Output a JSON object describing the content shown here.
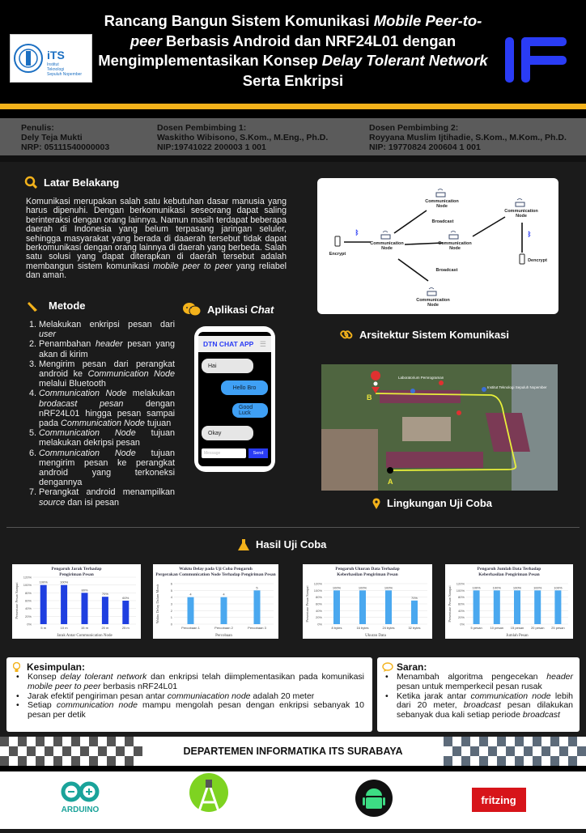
{
  "header": {
    "title_segments": [
      {
        "t": "Rancang Bangun Sistem Komunikasi "
      },
      {
        "t": "Mobile Peer-to-peer",
        "i": true
      },
      {
        "t": " Berbasis Android dan NRF24L01 dengan Mengimplementasikan Konsep "
      },
      {
        "t": "Delay Tolerant Network",
        "i": true
      },
      {
        "t": " Serta Enkripsi"
      }
    ],
    "its_logo": {
      "name": "iTS",
      "sub1": "Institut",
      "sub2": "Teknologi",
      "sub3": "Sepuluh Nopember"
    },
    "if_logo": "IF"
  },
  "authors": [
    {
      "role": "Penulis:",
      "name": "Dely Teja Mukti",
      "id": "NRP: 05111540000003"
    },
    {
      "role": "Dosen Pembimbing 1:",
      "name": "Waskitho Wibisono, S.Kom., M.Eng., Ph.D.",
      "id": "NIP:19741022 200003 1 001"
    },
    {
      "role": "Dosen Pembimbing 2:",
      "name": "Royyana Muslim Ijtihadie, S.Kom., M.Kom., Ph.D.",
      "id": "NIP: 19770824 200604 1 001"
    }
  ],
  "latar": {
    "title": "Latar Belakang",
    "segments": [
      {
        "t": "Komunikasi merupakan salah satu kebutuhan dasar manusia yang harus dipenuhi. Dengan berkomunikasi seseorang dapat saling berinteraksi dengan orang lainnya. Namun masih terdapat beberapa daerah di Indonesia yang belum terpasang jaringan seluler, sehingga masyarakat yang berada di daaerah tersebut tidak dapat berkomunikasi dengan orang lainnya di daerah yang berbeda. Salah satu solusi yang dapat diterapkan di daerah tersebut  adalah membangun sistem komunikasi "
      },
      {
        "t": "mobile peer to peer",
        "i": true
      },
      {
        "t": " yang reliabel dan aman."
      }
    ]
  },
  "metode": {
    "title": "Metode",
    "items": [
      [
        {
          "t": "Melakukan enkripsi pesan dari "
        },
        {
          "t": "user",
          "i": true
        }
      ],
      [
        {
          "t": "Penambahan "
        },
        {
          "t": "header",
          "i": true
        },
        {
          "t": " pesan yang akan di kirim"
        }
      ],
      [
        {
          "t": "Mengirim  pesan  dari perangkat android ke "
        },
        {
          "t": "Communication Node",
          "i": true
        },
        {
          "t": " melalui Bluetooth"
        }
      ],
      [
        {
          "t": "Communication  Node",
          "i": true
        },
        {
          "t": " melakukan "
        },
        {
          "t": "brodacast pesan",
          "i": true
        },
        {
          "t": " dengan nRF24L01 hingga pesan sampai pada "
        },
        {
          "t": "Communication  Node",
          "i": true
        },
        {
          "t": " tujuan"
        }
      ],
      [
        {
          "t": "Communication Node",
          "i": true
        },
        {
          "t": " tujuan melakukan dekripsi pesan"
        }
      ],
      [
        {
          "t": "Communication Node",
          "i": true
        },
        {
          "t": " tujuan mengirim pesan ke perangkat android yang terkoneksi dengannya"
        }
      ],
      [
        {
          "t": "Perangkat android menampilkan "
        },
        {
          "t": "source",
          "i": true
        },
        {
          "t": " dan isi pesan"
        }
      ]
    ]
  },
  "chat": {
    "title_plain": "Aplikasi ",
    "title_italic": "Chat",
    "app_title": "DTN CHAT APP",
    "messages": [
      {
        "text": "Hai",
        "side": "left"
      },
      {
        "text": "Hello Bro",
        "side": "right"
      },
      {
        "text": "Good Luck",
        "side": "right"
      },
      {
        "text": "Okay",
        "side": "left"
      }
    ],
    "input_placeholder": "Message",
    "send_label": "Send"
  },
  "diagram": {
    "node_label_1": "Communication",
    "node_label_2": "Node",
    "broadcast": "Broadcast",
    "encrypt": "Encrypt",
    "decrypt": "Dencrypt",
    "bluetooth_icon": "bluetooth-icon"
  },
  "arsitektur": {
    "title": "Arsitektur Sistem Komunikasi"
  },
  "map": {
    "label_a": "A",
    "label_b": "B",
    "poi_1": "Laboratorium Pemrograman",
    "poi_2": "Institut Teknologi Sepuluh Nopember"
  },
  "lingkungan": {
    "title": "Lingkungan Uji Coba"
  },
  "hasil": {
    "title": "Hasil Uji Coba"
  },
  "chart_data": [
    {
      "type": "bar",
      "title": "Pengaruh Jarak Terhadap Pengiriman Pesan",
      "categories": [
        "5 m",
        "10 m",
        "15 m",
        "20 m",
        "25 m"
      ],
      "values": [
        100,
        100,
        80,
        70,
        60
      ],
      "labels": [
        "100%",
        "100%",
        "80%",
        "70%",
        "60%"
      ],
      "yticks": [
        "0%",
        "20%",
        "40%",
        "60%",
        "80%",
        "100%",
        "120%"
      ],
      "ylim": [
        0,
        120
      ],
      "xlabel": "Jarak Antar Communication Node",
      "ylabel": "Persentase Pesan Sampai",
      "color": "#1f3fe0",
      "grid": true
    },
    {
      "type": "bar",
      "title": "Waktu Delay pada Uji Coba Pengaruh Pergerakan Communication Node Terhadap Pengiriman Pesan",
      "categories": [
        "Percobaan 1",
        "Percobaan 2",
        "Percobaan 3"
      ],
      "values": [
        4,
        4,
        5
      ],
      "labels": [
        "4",
        "4",
        "5"
      ],
      "yticks": [
        "0",
        "1",
        "2",
        "3",
        "4",
        "5",
        "6"
      ],
      "ylim": [
        0,
        6
      ],
      "xlabel": "Percobaan",
      "ylabel": "Waktu Delay Dalam Menit",
      "color": "#4aa8ef",
      "grid": true
    },
    {
      "type": "bar",
      "title": "Pengaruh Ukuran Data Terhadap Keberhasilan Pengiriman Pesan",
      "categories": [
        "8 bytes",
        "16 bytes",
        "24 bytes",
        "32 bytes"
      ],
      "values": [
        100,
        100,
        100,
        70
      ],
      "labels": [
        "100%",
        "100%",
        "100%",
        "70%"
      ],
      "yticks": [
        "0%",
        "20%",
        "40%",
        "60%",
        "80%",
        "100%",
        "120%"
      ],
      "ylim": [
        0,
        120
      ],
      "xlabel": "Ukuran Data",
      "ylabel": "Persentase Pesan Sampai",
      "color": "#4aa8ef",
      "grid": true
    },
    {
      "type": "bar",
      "title": "Pengaruh Jumlah Data Terhadap Keberhasilan Pengiriman Pesan",
      "categories": [
        "5 pesan",
        "10 pesan",
        "15 pesan",
        "20 pesan",
        "25 pesan"
      ],
      "values": [
        100,
        100,
        100,
        100,
        100
      ],
      "labels": [
        "100%",
        "100%",
        "100%",
        "100%",
        "100%"
      ],
      "yticks": [
        "0%",
        "20%",
        "40%",
        "60%",
        "80%",
        "100%",
        "120%"
      ],
      "ylim": [
        0,
        120
      ],
      "xlabel": "Jumlah Pesan",
      "ylabel": "Persentase Pesan Sampai",
      "color": "#4aa8ef",
      "grid": true
    }
  ],
  "kesimpulan": {
    "title": "Kesimpulan:",
    "items": [
      [
        {
          "t": "Konsep "
        },
        {
          "t": "delay tolerant network",
          "i": true
        },
        {
          "t": " dan enkripsi telah diimplementasikan pada komunikasi "
        },
        {
          "t": "mobile peer to peer",
          "i": true
        },
        {
          "t": " berbasis nRF24L01"
        }
      ],
      [
        {
          "t": "Jarak efektif pengiriman pesan antar "
        },
        {
          "t": "communiacation node",
          "i": true
        },
        {
          "t": " adalah 20 meter"
        }
      ],
      [
        {
          "t": "Setiap "
        },
        {
          "t": "communication node",
          "i": true
        },
        {
          "t": " mampu mengolah pesan dengan enkripsi sebanyak 10 pesan per detik"
        }
      ]
    ]
  },
  "saran": {
    "title": "Saran:",
    "items": [
      [
        {
          "t": "Menambah algoritma pengecekan "
        },
        {
          "t": "header",
          "i": true
        },
        {
          "t": " pesan untuk memperkecil pesan rusak"
        }
      ],
      [
        {
          "t": "Ketika jarak antar "
        },
        {
          "t": "communication node",
          "i": true
        },
        {
          "t": " lebih dari 20 meter, "
        },
        {
          "t": "broadcast",
          "i": true
        },
        {
          "t": " pesan dilakukan sebanyak dua kali setiap periode "
        },
        {
          "t": "broadcast",
          "i": true
        }
      ]
    ]
  },
  "footer": {
    "department": "DEPARTEMEN INFORMATIKA ITS  SURABAYA",
    "arduino": "ARDUINO",
    "fritzing": "fritzing"
  },
  "colors": {
    "gold": "#f3b21b",
    "if_blue": "#2a3cf5",
    "chat_blue": "#3fa0f5",
    "arduino": "#1aa39a",
    "fritzing": "#d7141a"
  }
}
